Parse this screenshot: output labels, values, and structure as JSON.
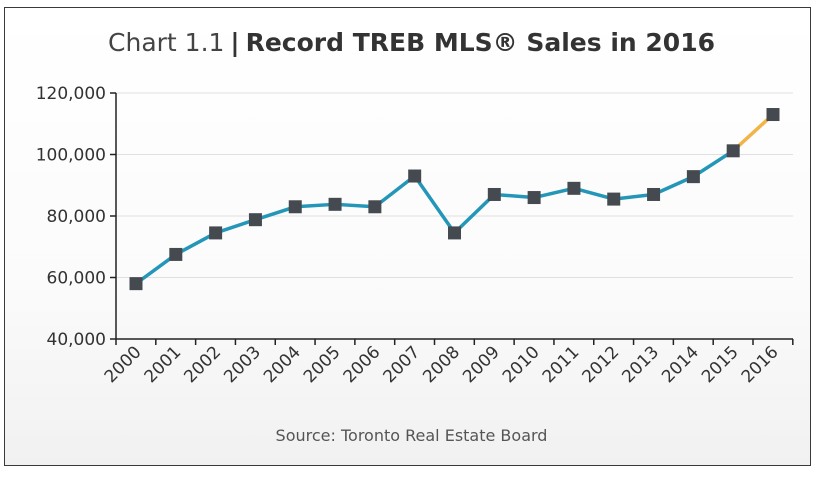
{
  "title": {
    "prefix": "Chart 1.1",
    "separator": "|",
    "main": "Record TREB MLS® Sales in 2016"
  },
  "source": "Source: Toronto Real Estate Board",
  "colors": {
    "line": "#2496b8",
    "highlight": "#f2b347",
    "marker": "#454a50",
    "axis": "#222222",
    "grid": "#e0e0e0"
  },
  "chart_data": {
    "type": "line",
    "x": [
      "2000",
      "2001",
      "2002",
      "2003",
      "2004",
      "2005",
      "2006",
      "2007",
      "2008",
      "2009",
      "2010",
      "2011",
      "2012",
      "2013",
      "2014",
      "2015",
      "2016"
    ],
    "series": [
      {
        "values": [
          58000,
          67500,
          74500,
          78800,
          83000,
          83800,
          83000,
          93000,
          74500,
          87000,
          86000,
          89000,
          85500,
          87000,
          92800,
          101200,
          113000
        ]
      }
    ],
    "highlight_last_segment": true,
    "ylim": [
      40000,
      120000
    ],
    "yticks": [
      40000,
      60000,
      80000,
      100000,
      120000
    ],
    "ytick_labels": [
      "40,000",
      "60,000",
      "80,000",
      "100,000",
      "120,000"
    ],
    "grid": true,
    "xlabel": "",
    "ylabel": ""
  }
}
